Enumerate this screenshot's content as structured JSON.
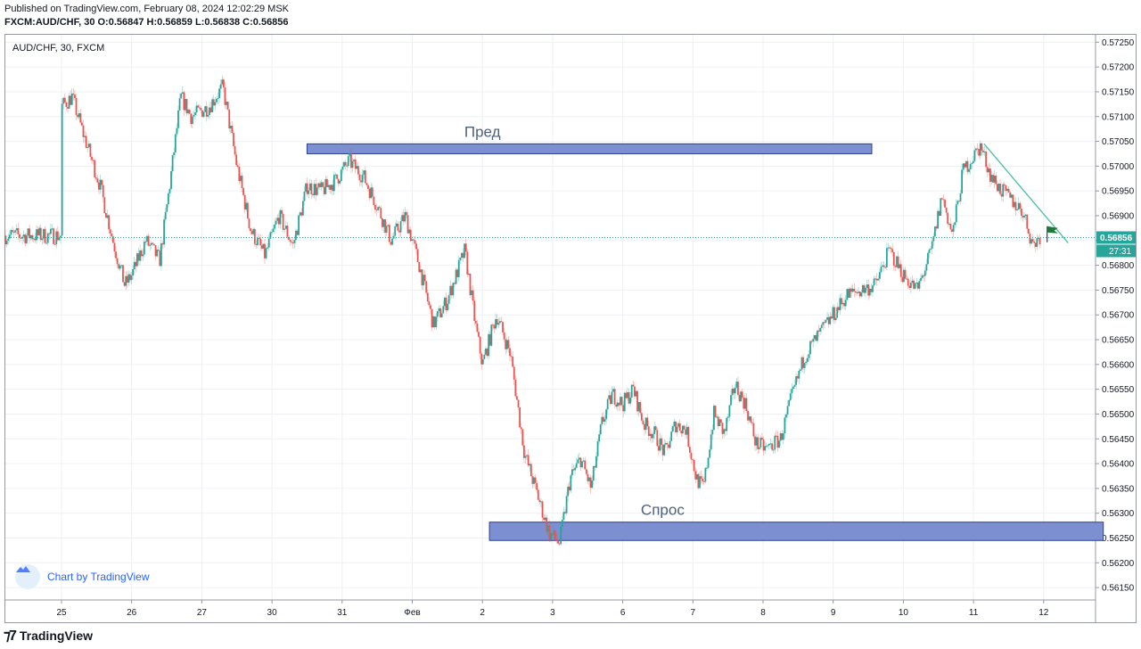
{
  "header": {
    "published": "Published on TradingView.com, February 08, 2024 12:02:29 MSK",
    "ohlc": "FXCM:AUD/CHF, 30 O:0.56847 H:0.56859 L:0.56838 C:0.56856"
  },
  "chart_data": {
    "type": "candlestick",
    "symbol_label": "AUD/CHF, 30, FXCM",
    "x_tick_labels": [
      "25",
      "26",
      "27",
      "30",
      "31",
      "Фев",
      "2",
      "3",
      "6",
      "7",
      "8",
      "9",
      "10",
      "11",
      "12"
    ],
    "y_tick_labels": [
      "0.57250",
      "0.57200",
      "0.57150",
      "0.57100",
      "0.57050",
      "0.57000",
      "0.56950",
      "0.56900",
      "0.56850",
      "0.56800",
      "0.56750",
      "0.56700",
      "0.56650",
      "0.56600",
      "0.56550",
      "0.56500",
      "0.56450",
      "0.56400",
      "0.56350",
      "0.56300",
      "0.56250",
      "0.56200",
      "0.56150"
    ],
    "ylim": [
      0.56125,
      0.57265
    ],
    "last_price": "0.56856",
    "countdown": "27:31",
    "grid": true,
    "price_path": [
      [
        0,
        0.5712
      ],
      [
        0.15,
        0.5714
      ],
      [
        0.3,
        0.5707
      ],
      [
        0.55,
        0.5696
      ],
      [
        0.75,
        0.5684
      ],
      [
        0.9,
        0.5676
      ],
      [
        1.0,
        0.5678
      ],
      [
        1.2,
        0.5685
      ],
      [
        1.4,
        0.5681
      ],
      [
        1.55,
        0.5697
      ],
      [
        1.7,
        0.5714
      ],
      [
        1.85,
        0.571
      ],
      [
        2.1,
        0.5712
      ],
      [
        2.3,
        0.5716
      ],
      [
        2.5,
        0.57
      ],
      [
        2.7,
        0.5687
      ],
      [
        2.9,
        0.5682
      ],
      [
        3.1,
        0.569
      ],
      [
        3.3,
        0.5684
      ],
      [
        3.5,
        0.5696
      ],
      [
        3.7,
        0.5695
      ],
      [
        3.9,
        0.5697
      ],
      [
        4.1,
        0.5701
      ],
      [
        4.3,
        0.5698
      ],
      [
        4.5,
        0.5692
      ],
      [
        4.7,
        0.5685
      ],
      [
        4.9,
        0.569
      ],
      [
        5.1,
        0.568
      ],
      [
        5.3,
        0.5668
      ],
      [
        5.5,
        0.5673
      ],
      [
        5.75,
        0.5683
      ],
      [
        5.9,
        0.5668
      ],
      [
        6.0,
        0.566
      ],
      [
        6.2,
        0.567
      ],
      [
        6.4,
        0.5662
      ],
      [
        6.6,
        0.5642
      ],
      [
        6.8,
        0.5633
      ],
      [
        6.95,
        0.5626
      ],
      [
        7.1,
        0.5624
      ],
      [
        7.25,
        0.5637
      ],
      [
        7.4,
        0.5641
      ],
      [
        7.55,
        0.5635
      ],
      [
        7.7,
        0.5648
      ],
      [
        7.85,
        0.5654
      ],
      [
        8.0,
        0.5652
      ],
      [
        8.15,
        0.5655
      ],
      [
        8.3,
        0.5648
      ],
      [
        8.45,
        0.5646
      ],
      [
        8.6,
        0.5642
      ],
      [
        8.75,
        0.5648
      ],
      [
        8.9,
        0.5647
      ],
      [
        9.05,
        0.5637
      ],
      [
        9.15,
        0.5635
      ],
      [
        9.3,
        0.565
      ],
      [
        9.45,
        0.5646
      ],
      [
        9.6,
        0.5656
      ],
      [
        9.75,
        0.5652
      ],
      [
        9.9,
        0.5644
      ],
      [
        10.05,
        0.5643
      ],
      [
        10.25,
        0.5645
      ],
      [
        10.4,
        0.5653
      ],
      [
        10.6,
        0.5662
      ],
      [
        10.8,
        0.5666
      ],
      [
        11.0,
        0.567
      ],
      [
        11.2,
        0.5674
      ],
      [
        11.4,
        0.5675
      ],
      [
        11.6,
        0.5676
      ],
      [
        11.8,
        0.5683
      ],
      [
        12.0,
        0.5678
      ],
      [
        12.2,
        0.5675
      ],
      [
        12.4,
        0.5683
      ],
      [
        12.55,
        0.5694
      ],
      [
        12.7,
        0.5686
      ],
      [
        12.85,
        0.5699
      ],
      [
        13.0,
        0.5702
      ],
      [
        13.1,
        0.5704
      ],
      [
        13.25,
        0.5698
      ],
      [
        13.4,
        0.5695
      ],
      [
        13.55,
        0.5693
      ],
      [
        13.7,
        0.5691
      ],
      [
        13.85,
        0.5684
      ],
      [
        13.95,
        0.5686
      ]
    ],
    "zones": [
      {
        "label": "Пред",
        "x_start": 3.5,
        "x_end": 11.55,
        "y_low": 0.57025,
        "y_high": 0.57045
      },
      {
        "label": "Спрос",
        "x_start": 6.1,
        "x_end": 14.85,
        "y_low": 0.56245,
        "y_high": 0.56282
      }
    ],
    "trendline": {
      "x1": 13.15,
      "y1": 0.57045,
      "x2": 14.35,
      "y2": 0.56845
    },
    "flag_at": {
      "x": 14.05,
      "y": 0.56868
    }
  },
  "footer": {
    "chart_by": "Chart by TradingView",
    "brand": "TradingView"
  },
  "colors": {
    "up": "#26a69a",
    "down": "#ef5350",
    "zone_fill": "#7b8fd1",
    "zone_border": "#2c3e9e",
    "price_line": "#26a69a",
    "grid": "#eef0f4"
  }
}
